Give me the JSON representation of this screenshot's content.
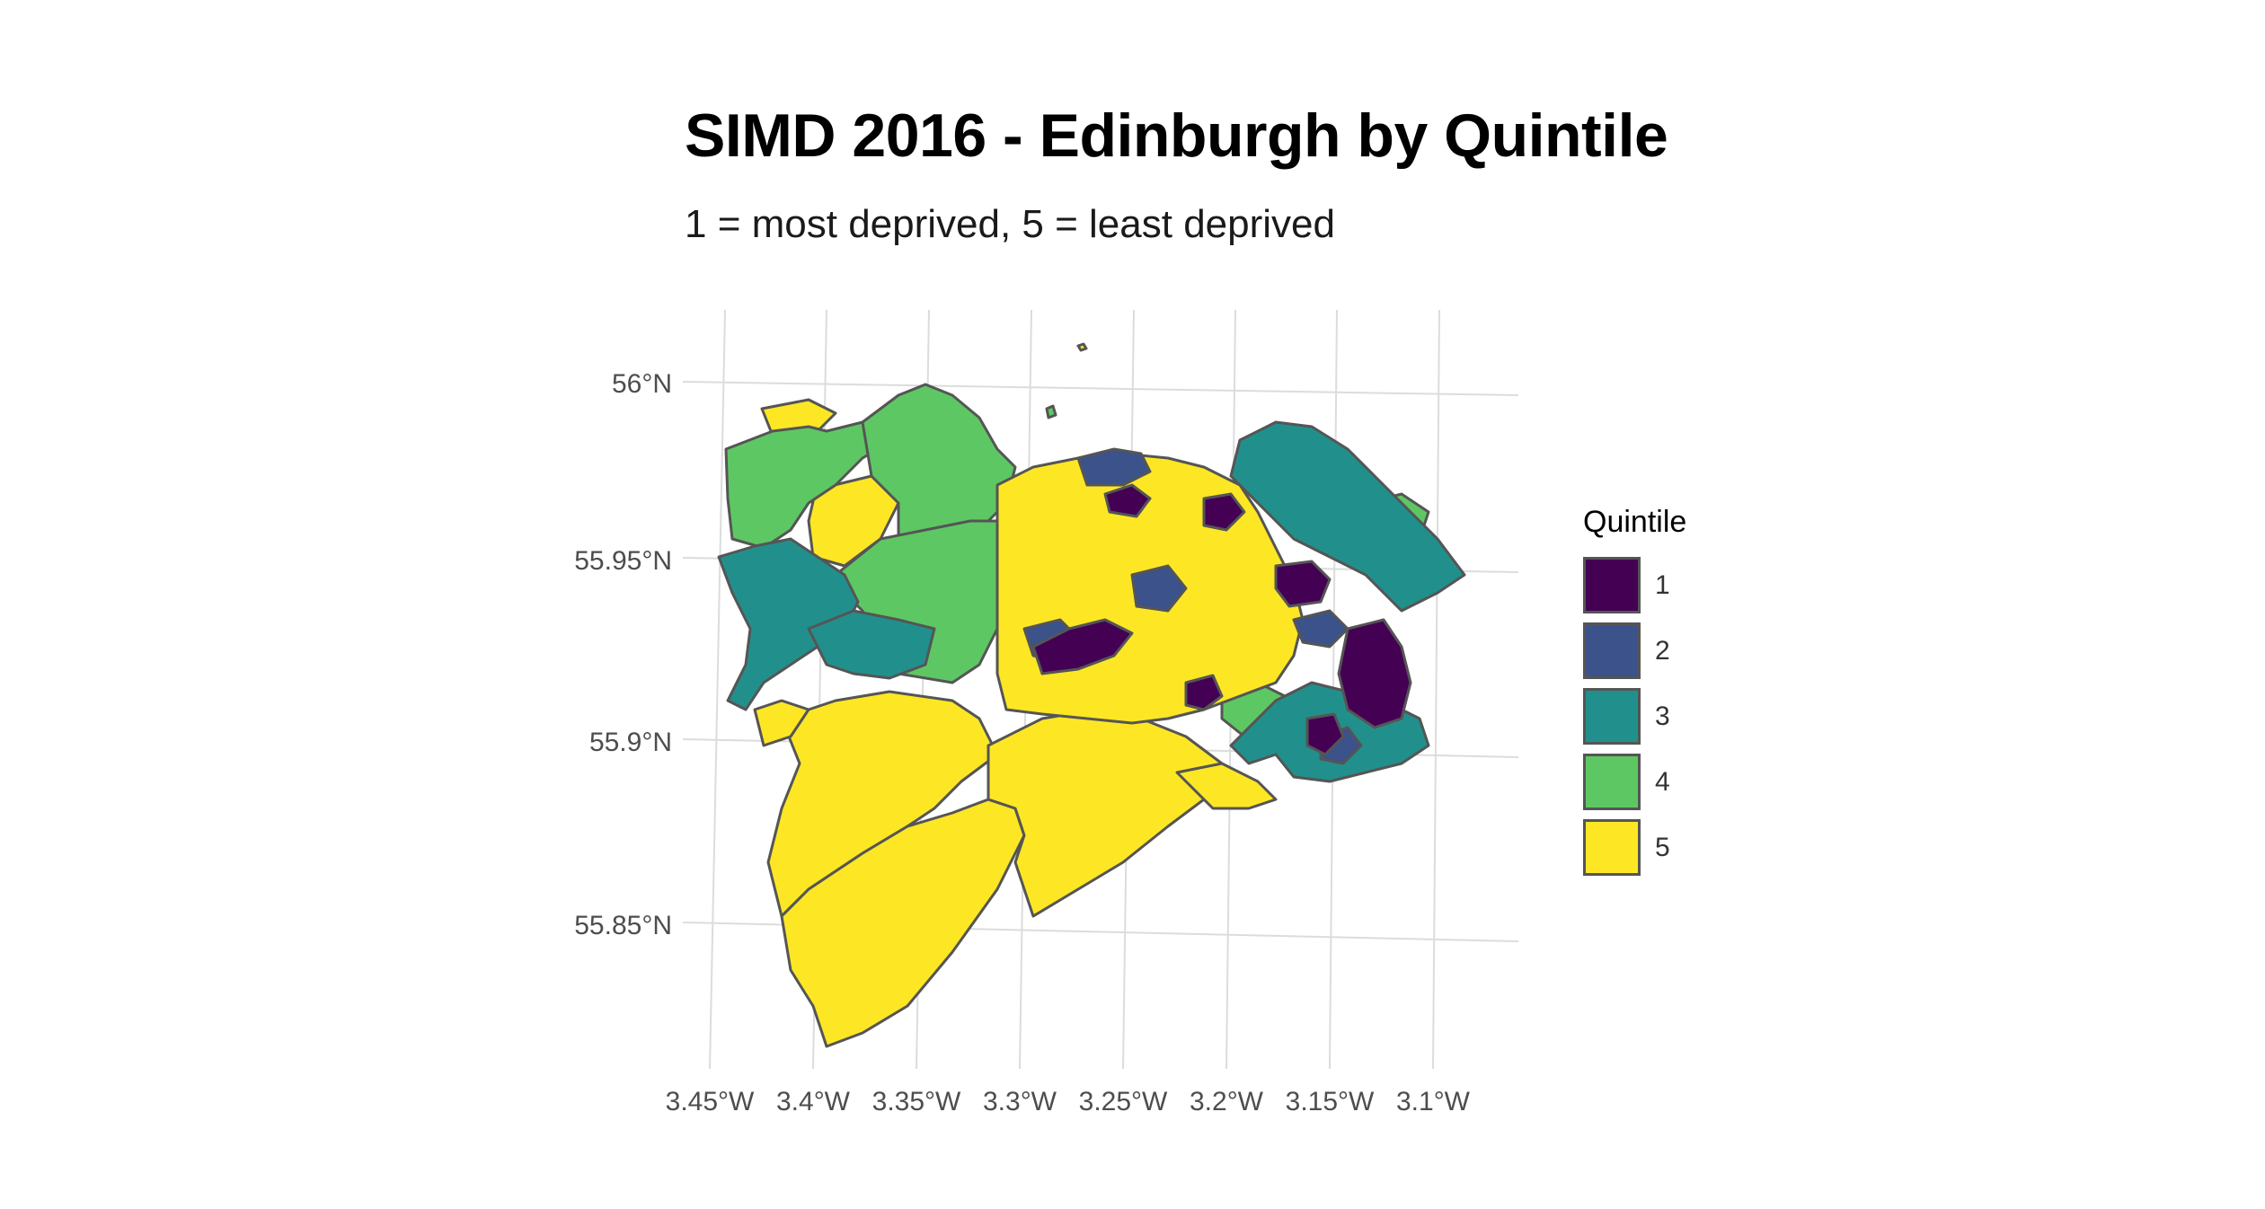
{
  "title": "SIMD 2016 - Edinburgh by Quintile",
  "subtitle": "1 = most deprived, 5 = least deprived",
  "axes": {
    "x_ticks": [
      "3.45°W",
      "3.4°W",
      "3.35°W",
      "3.3°W",
      "3.25°W",
      "3.2°W",
      "3.15°W",
      "3.1°W"
    ],
    "y_ticks": [
      "56°N",
      "55.95°N",
      "55.9°N",
      "55.85°N"
    ],
    "grid": true
  },
  "legend": {
    "title": "Quintile",
    "placement": "right",
    "items": [
      {
        "label": "1",
        "color": "#440154"
      },
      {
        "label": "2",
        "color": "#3B528B"
      },
      {
        "label": "3",
        "color": "#21908C"
      },
      {
        "label": "4",
        "color": "#5DC863"
      },
      {
        "label": "5",
        "color": "#FDE725"
      }
    ]
  },
  "colors": {
    "q1": "#440154",
    "q2": "#3B528B",
    "q3": "#21908C",
    "q4": "#5DC863",
    "q5": "#FDE725",
    "border": "#555555",
    "grid": "#dcdcdc"
  }
}
